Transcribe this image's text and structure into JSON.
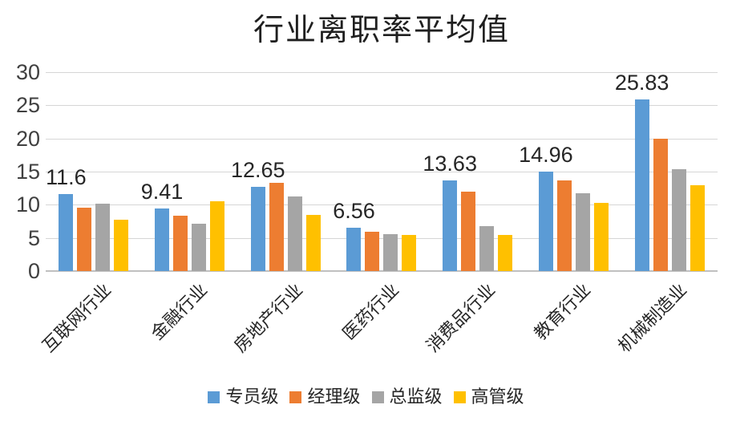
{
  "title": "行业离职率平均值",
  "chart_data": {
    "type": "bar",
    "title": "行业离职率平均值",
    "categories": [
      "互联网行业",
      "金融行业",
      "房地产行业",
      "医药行业",
      "消费品行业",
      "教育行业",
      "机械制造业"
    ],
    "series": [
      {
        "name": "专员级",
        "color": "#5B9BD5",
        "values": [
          11.6,
          9.41,
          12.65,
          6.56,
          13.63,
          14.96,
          25.83
        ]
      },
      {
        "name": "经理级",
        "color": "#ED7D31",
        "values": [
          9.6,
          8.3,
          13.3,
          5.9,
          12.0,
          13.7,
          20.0
        ]
      },
      {
        "name": "总监级",
        "color": "#A5A5A5",
        "values": [
          10.2,
          7.1,
          11.2,
          5.6,
          6.8,
          11.7,
          15.4
        ]
      },
      {
        "name": "高管级",
        "color": "#FFC000",
        "values": [
          7.7,
          10.5,
          8.5,
          5.4,
          5.5,
          10.3,
          13.0
        ]
      }
    ],
    "data_labels": {
      "series": "专员级",
      "values": [
        "11.6",
        "9.41",
        "12.65",
        "6.56",
        "13.63",
        "14.96",
        "25.83"
      ]
    },
    "ylim": [
      0,
      30
    ],
    "yticks": [
      0,
      5,
      10,
      15,
      20,
      25,
      30
    ],
    "grid": true,
    "legend_position": "bottom",
    "colors": {
      "gridline": "#D6D6D6",
      "axis_line": "#C0C0C0",
      "tick_text": "#404040",
      "label_text": "#262626",
      "background": "#FFFFFF"
    }
  }
}
